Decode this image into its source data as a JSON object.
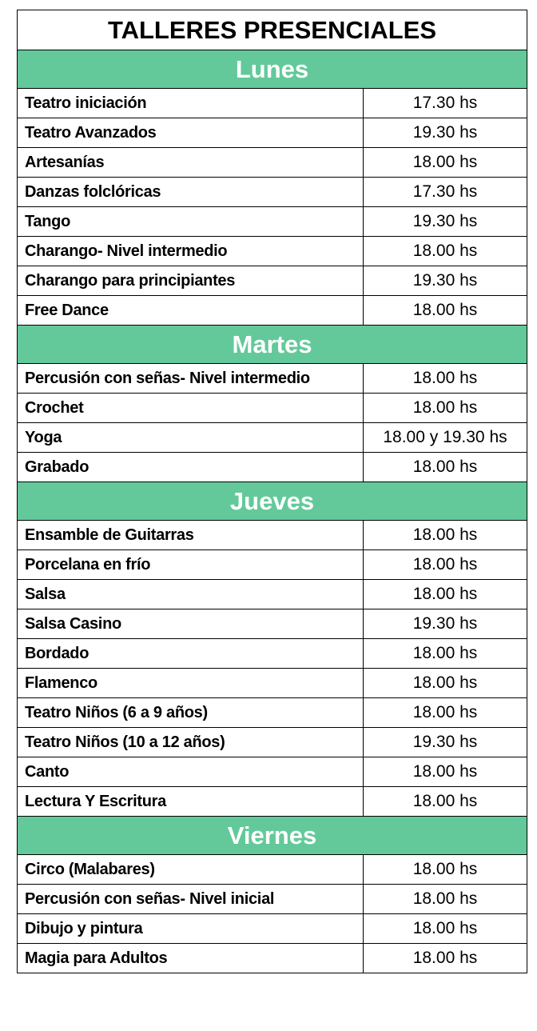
{
  "title": "TALLERES PRESENCIALES",
  "sections": [
    {
      "day": "Lunes",
      "rows": [
        [
          "Teatro iniciación",
          "17.30 hs"
        ],
        [
          "Teatro Avanzados",
          "19.30 hs"
        ],
        [
          "Artesanías",
          "18.00 hs"
        ],
        [
          "Danzas folclóricas",
          "17.30 hs"
        ],
        [
          "Tango",
          "19.30 hs"
        ],
        [
          "Charango- Nivel intermedio",
          "18.00 hs"
        ],
        [
          "Charango para principiantes",
          "19.30 hs"
        ],
        [
          "Free Dance",
          "18.00 hs"
        ]
      ]
    },
    {
      "day": "Martes",
      "rows": [
        [
          "Percusión con señas- Nivel intermedio",
          "18.00 hs"
        ],
        [
          "Crochet",
          "18.00 hs"
        ],
        [
          "Yoga",
          "18.00 y 19.30 hs"
        ],
        [
          "Grabado",
          "18.00 hs"
        ]
      ]
    },
    {
      "day": "Jueves",
      "rows": [
        [
          "Ensamble de Guitarras",
          "18.00 hs"
        ],
        [
          "Porcelana en frío",
          "18.00 hs"
        ],
        [
          "Salsa",
          "18.00 hs"
        ],
        [
          "Salsa Casino",
          "19.30 hs"
        ],
        [
          "Bordado",
          "18.00 hs"
        ],
        [
          "Flamenco",
          "18.00 hs"
        ],
        [
          "Teatro Niños  (6 a 9 años)",
          "18.00 hs"
        ],
        [
          "Teatro Niños (10 a 12 años)",
          "19.30 hs"
        ],
        [
          "Canto",
          "18.00 hs"
        ],
        [
          "Lectura Y Escritura",
          "18.00 hs"
        ]
      ]
    },
    {
      "day": "Viernes",
      "rows": [
        [
          "Circo (Malabares)",
          "18.00 hs"
        ],
        [
          "Percusión con señas- Nivel  inicial",
          "18.00 hs"
        ],
        [
          "Dibujo y pintura",
          "18.00 hs"
        ],
        [
          "Magia para Adultos",
          "18.00 hs"
        ]
      ]
    }
  ]
}
